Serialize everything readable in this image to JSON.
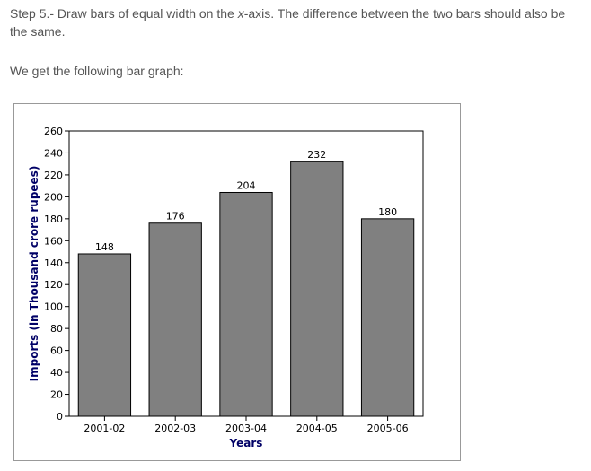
{
  "text": {
    "step_prefix": "Step 5.- Draw bars of equal width on the ",
    "step_axis": "x",
    "step_suffix": "-axis. The difference between the two bars should also be the same.",
    "we_get": "We get the following bar graph:"
  },
  "chart_data": {
    "type": "bar",
    "categories": [
      "2001-02",
      "2002-03",
      "2003-04",
      "2004-05",
      "2005-06"
    ],
    "values": [
      148,
      176,
      204,
      232,
      180
    ],
    "title": "",
    "xlabel": "Years",
    "ylabel": "Imports (in Thousand crore rupees)",
    "ylim": [
      0,
      260
    ],
    "yticks": [
      0,
      20,
      40,
      60,
      80,
      100,
      120,
      140,
      160,
      180,
      200,
      220,
      240,
      260
    ],
    "grid": false,
    "legend": "none",
    "colors": {
      "bar_fill": "#808080",
      "bar_stroke": "#000000",
      "axis_label": "#000066",
      "tick_text": "#000000"
    }
  }
}
